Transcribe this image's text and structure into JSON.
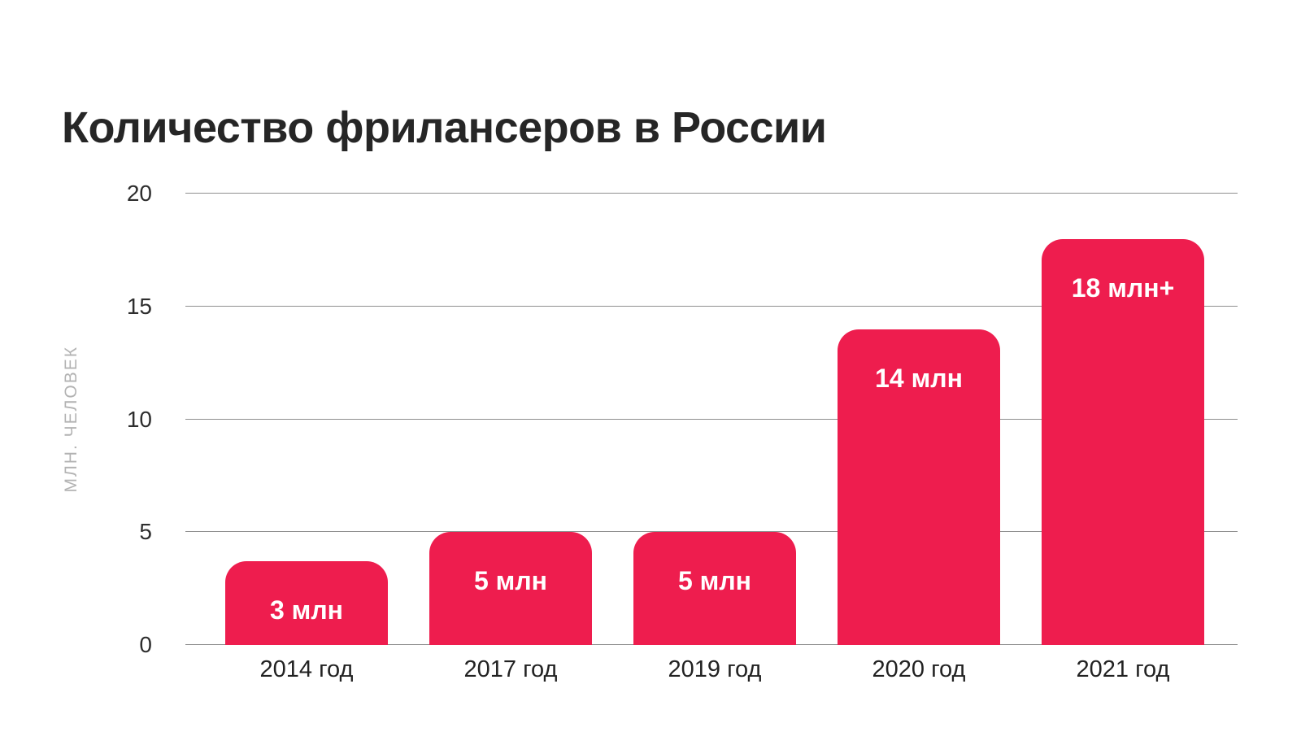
{
  "title": "Количество фрилансеров в России",
  "chart_data": {
    "type": "bar",
    "title": "Количество фрилансеров в России",
    "categories": [
      "2014 год",
      "2017 год",
      "2019 год",
      "2020 год",
      "2021 год"
    ],
    "values": [
      3,
      5,
      5,
      14,
      18
    ],
    "bar_labels": [
      "3 млн",
      "5 млн",
      "5 млн",
      "14 млн",
      "18 млн+"
    ],
    "xlabel": "",
    "ylabel": "МЛН. ЧЕЛОВЕК",
    "ylim": [
      0,
      20
    ],
    "yticks": [
      0,
      5,
      10,
      15,
      20
    ],
    "grid": true,
    "legend": false,
    "colors": {
      "background": "#ffffff",
      "bar": "#ee1d4e",
      "bar_label": "#ffffff",
      "title": "#262626",
      "y_tick": "#2e2e2e",
      "x_label": "#222222",
      "y_axis_title": "#b3b3b3",
      "gridline": "#8f8f8f"
    }
  }
}
